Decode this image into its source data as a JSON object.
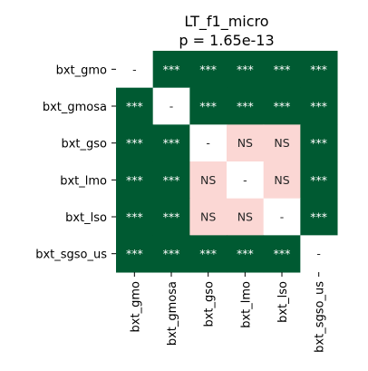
{
  "chart_data": {
    "type": "heatmap",
    "title": "LT_f1_micro",
    "subtitle": "p = 1.65e-13",
    "row_labels": [
      "bxt_gmo",
      "bxt_gmosa",
      "bxt_gso",
      "bxt_lmo",
      "bxt_lso",
      "bxt_sgso_us"
    ],
    "col_labels": [
      "bxt_gmo",
      "bxt_gmosa",
      "bxt_gso",
      "bxt_lmo",
      "bxt_lso",
      "bxt_sgso_us"
    ],
    "cells": [
      [
        "-",
        "***",
        "***",
        "***",
        "***",
        "***"
      ],
      [
        "***",
        "-",
        "***",
        "***",
        "***",
        "***"
      ],
      [
        "***",
        "***",
        "-",
        "NS",
        "NS",
        "***"
      ],
      [
        "***",
        "***",
        "NS",
        "-",
        "NS",
        "***"
      ],
      [
        "***",
        "***",
        "NS",
        "NS",
        "-",
        "***"
      ],
      [
        "***",
        "***",
        "***",
        "***",
        "***",
        "-"
      ]
    ],
    "colors": {
      "significant": "#005a32",
      "not_significant": "#fbd7d4",
      "diagonal": "#ffffff",
      "text_on_dark": "#ffffff",
      "text_on_light": "#262626"
    }
  }
}
